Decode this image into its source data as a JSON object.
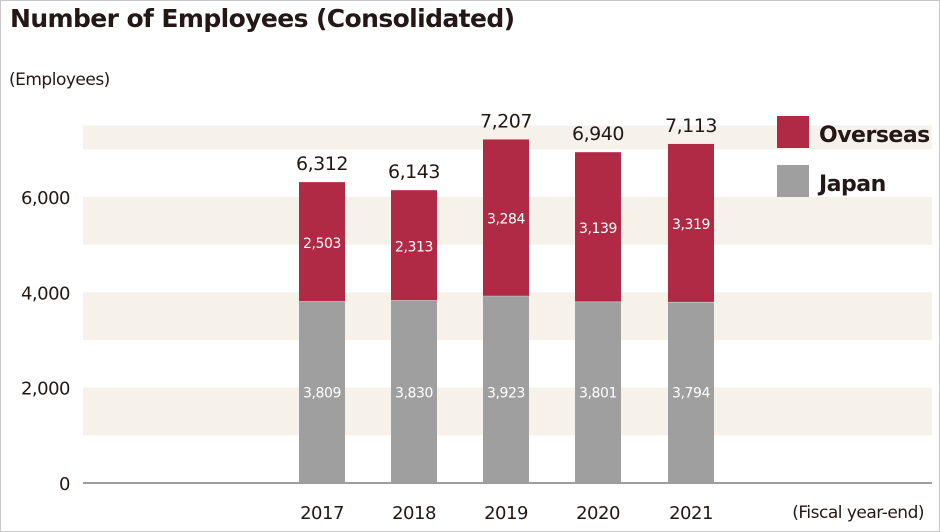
{
  "chart_data": {
    "type": "bar",
    "stacked": true,
    "title": "Number of Employees (Consolidated)",
    "ylabel": "(Employees)",
    "xlabel": "(Fiscal year-end)",
    "categories": [
      "2017",
      "2018",
      "2019",
      "2020",
      "2021"
    ],
    "series": [
      {
        "name": "Japan",
        "color": "#9f9f9f",
        "values": [
          3809,
          3830,
          3923,
          3801,
          3794
        ],
        "labels": [
          "3,809",
          "3,830",
          "3,923",
          "3,801",
          "3,794"
        ]
      },
      {
        "name": "Overseas",
        "color": "#b02a46",
        "values": [
          2503,
          2313,
          3284,
          3139,
          3319
        ],
        "labels": [
          "2,503",
          "2,313",
          "3,284",
          "3,139",
          "3,319"
        ]
      }
    ],
    "totals": [
      6312,
      6143,
      7207,
      6940,
      7113
    ],
    "total_labels": [
      "6,312",
      "6,143",
      "7,207",
      "6,940",
      "7,113"
    ],
    "yticks": [
      0,
      2000,
      4000,
      6000
    ],
    "ytick_labels": [
      "0",
      "2,000",
      "4,000",
      "6,000"
    ],
    "ylim": [
      0,
      7500
    ],
    "grid": "alternating horizontal bands",
    "band_color": "#f6f2e9",
    "legend": {
      "position": "top-right",
      "entries": [
        {
          "name": "Overseas",
          "color": "#b02a46"
        },
        {
          "name": "Japan",
          "color": "#9f9f9f"
        }
      ]
    }
  }
}
